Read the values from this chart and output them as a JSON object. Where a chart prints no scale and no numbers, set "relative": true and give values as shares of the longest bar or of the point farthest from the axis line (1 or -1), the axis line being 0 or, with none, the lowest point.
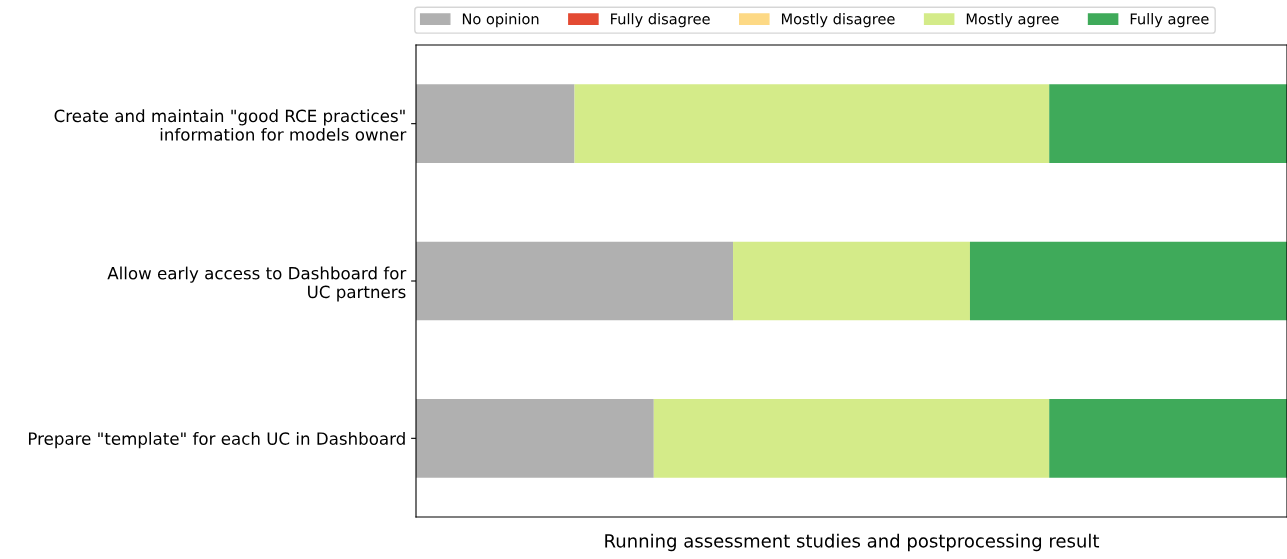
{
  "chart_data": {
    "type": "bar",
    "orientation": "horizontal",
    "stacked": true,
    "relative": true,
    "xlabel": "Running assessment studies and postprocessing result",
    "categories": [
      "Create and maintain \"good RCE practices\"\ninformation for models owner",
      "Allow early access to Dashboard for\nUC partners",
      "Prepare \"template\" for each UC in Dashboard"
    ],
    "series": [
      {
        "name": "No opinion",
        "color": "#b0b0b0",
        "values": [
          0.182,
          0.364,
          0.273
        ]
      },
      {
        "name": "Fully disagree",
        "color": "#e34a33",
        "values": [
          0,
          0,
          0
        ]
      },
      {
        "name": "Mostly disagree",
        "color": "#fdd985",
        "values": [
          0,
          0,
          0
        ]
      },
      {
        "name": "Mostly agree",
        "color": "#d4eb89",
        "values": [
          0.545,
          0.272,
          0.454
        ]
      },
      {
        "name": "Fully agree",
        "color": "#3faa5a",
        "values": [
          0.273,
          0.364,
          0.273
        ]
      }
    ],
    "legend": "top",
    "grid": false
  }
}
